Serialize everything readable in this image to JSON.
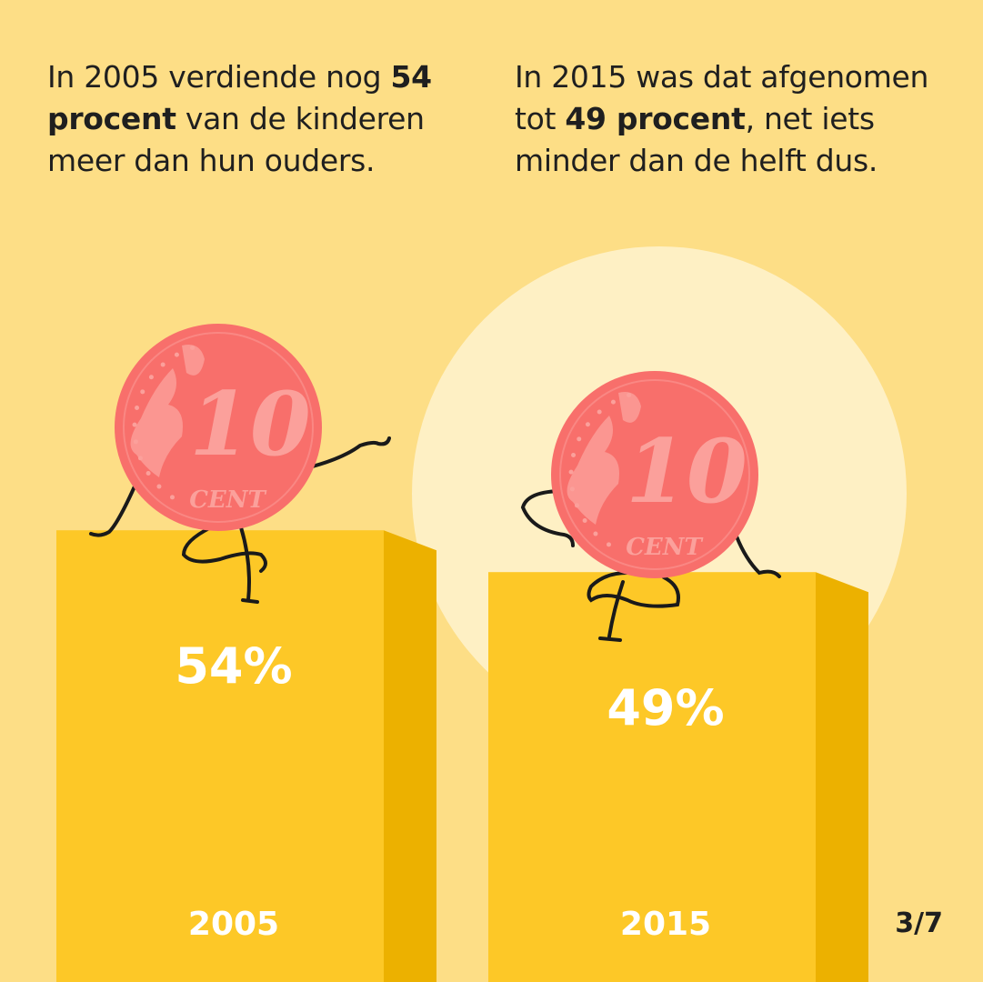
{
  "captions": {
    "left": {
      "p1": "In 2005 verdiende nog ",
      "b1": "54",
      "p2": " ",
      "b2": "procent",
      "p3": " van de kinderen meer dan hun ouders."
    },
    "right": {
      "p1": "In 2015 was dat afgenomen tot ",
      "b1": "49 procent",
      "p2": ", net iets minder dan de helft dus."
    }
  },
  "coin_text": {
    "value": "10",
    "unit": "CENT"
  },
  "page_indicator": "3/7",
  "colors": {
    "background": "#FDDE86",
    "highlight_circle": "#FEF0C4",
    "bar_front": "#FDC827",
    "bar_side": "#ECB100",
    "coin": "#F86F6B",
    "coin_detail": "#FBA09B",
    "text_dark": "#1F1F1F",
    "label_white": "#FFFFFF"
  },
  "icons": [
    "coin-character-icon"
  ],
  "chart_data": {
    "type": "bar",
    "categories": [
      "2005",
      "2015"
    ],
    "values": [
      54,
      49
    ],
    "value_labels": [
      "54%",
      "49%"
    ],
    "unit": "%",
    "ylim": [
      0,
      100
    ],
    "legend": "none",
    "grid": false
  }
}
